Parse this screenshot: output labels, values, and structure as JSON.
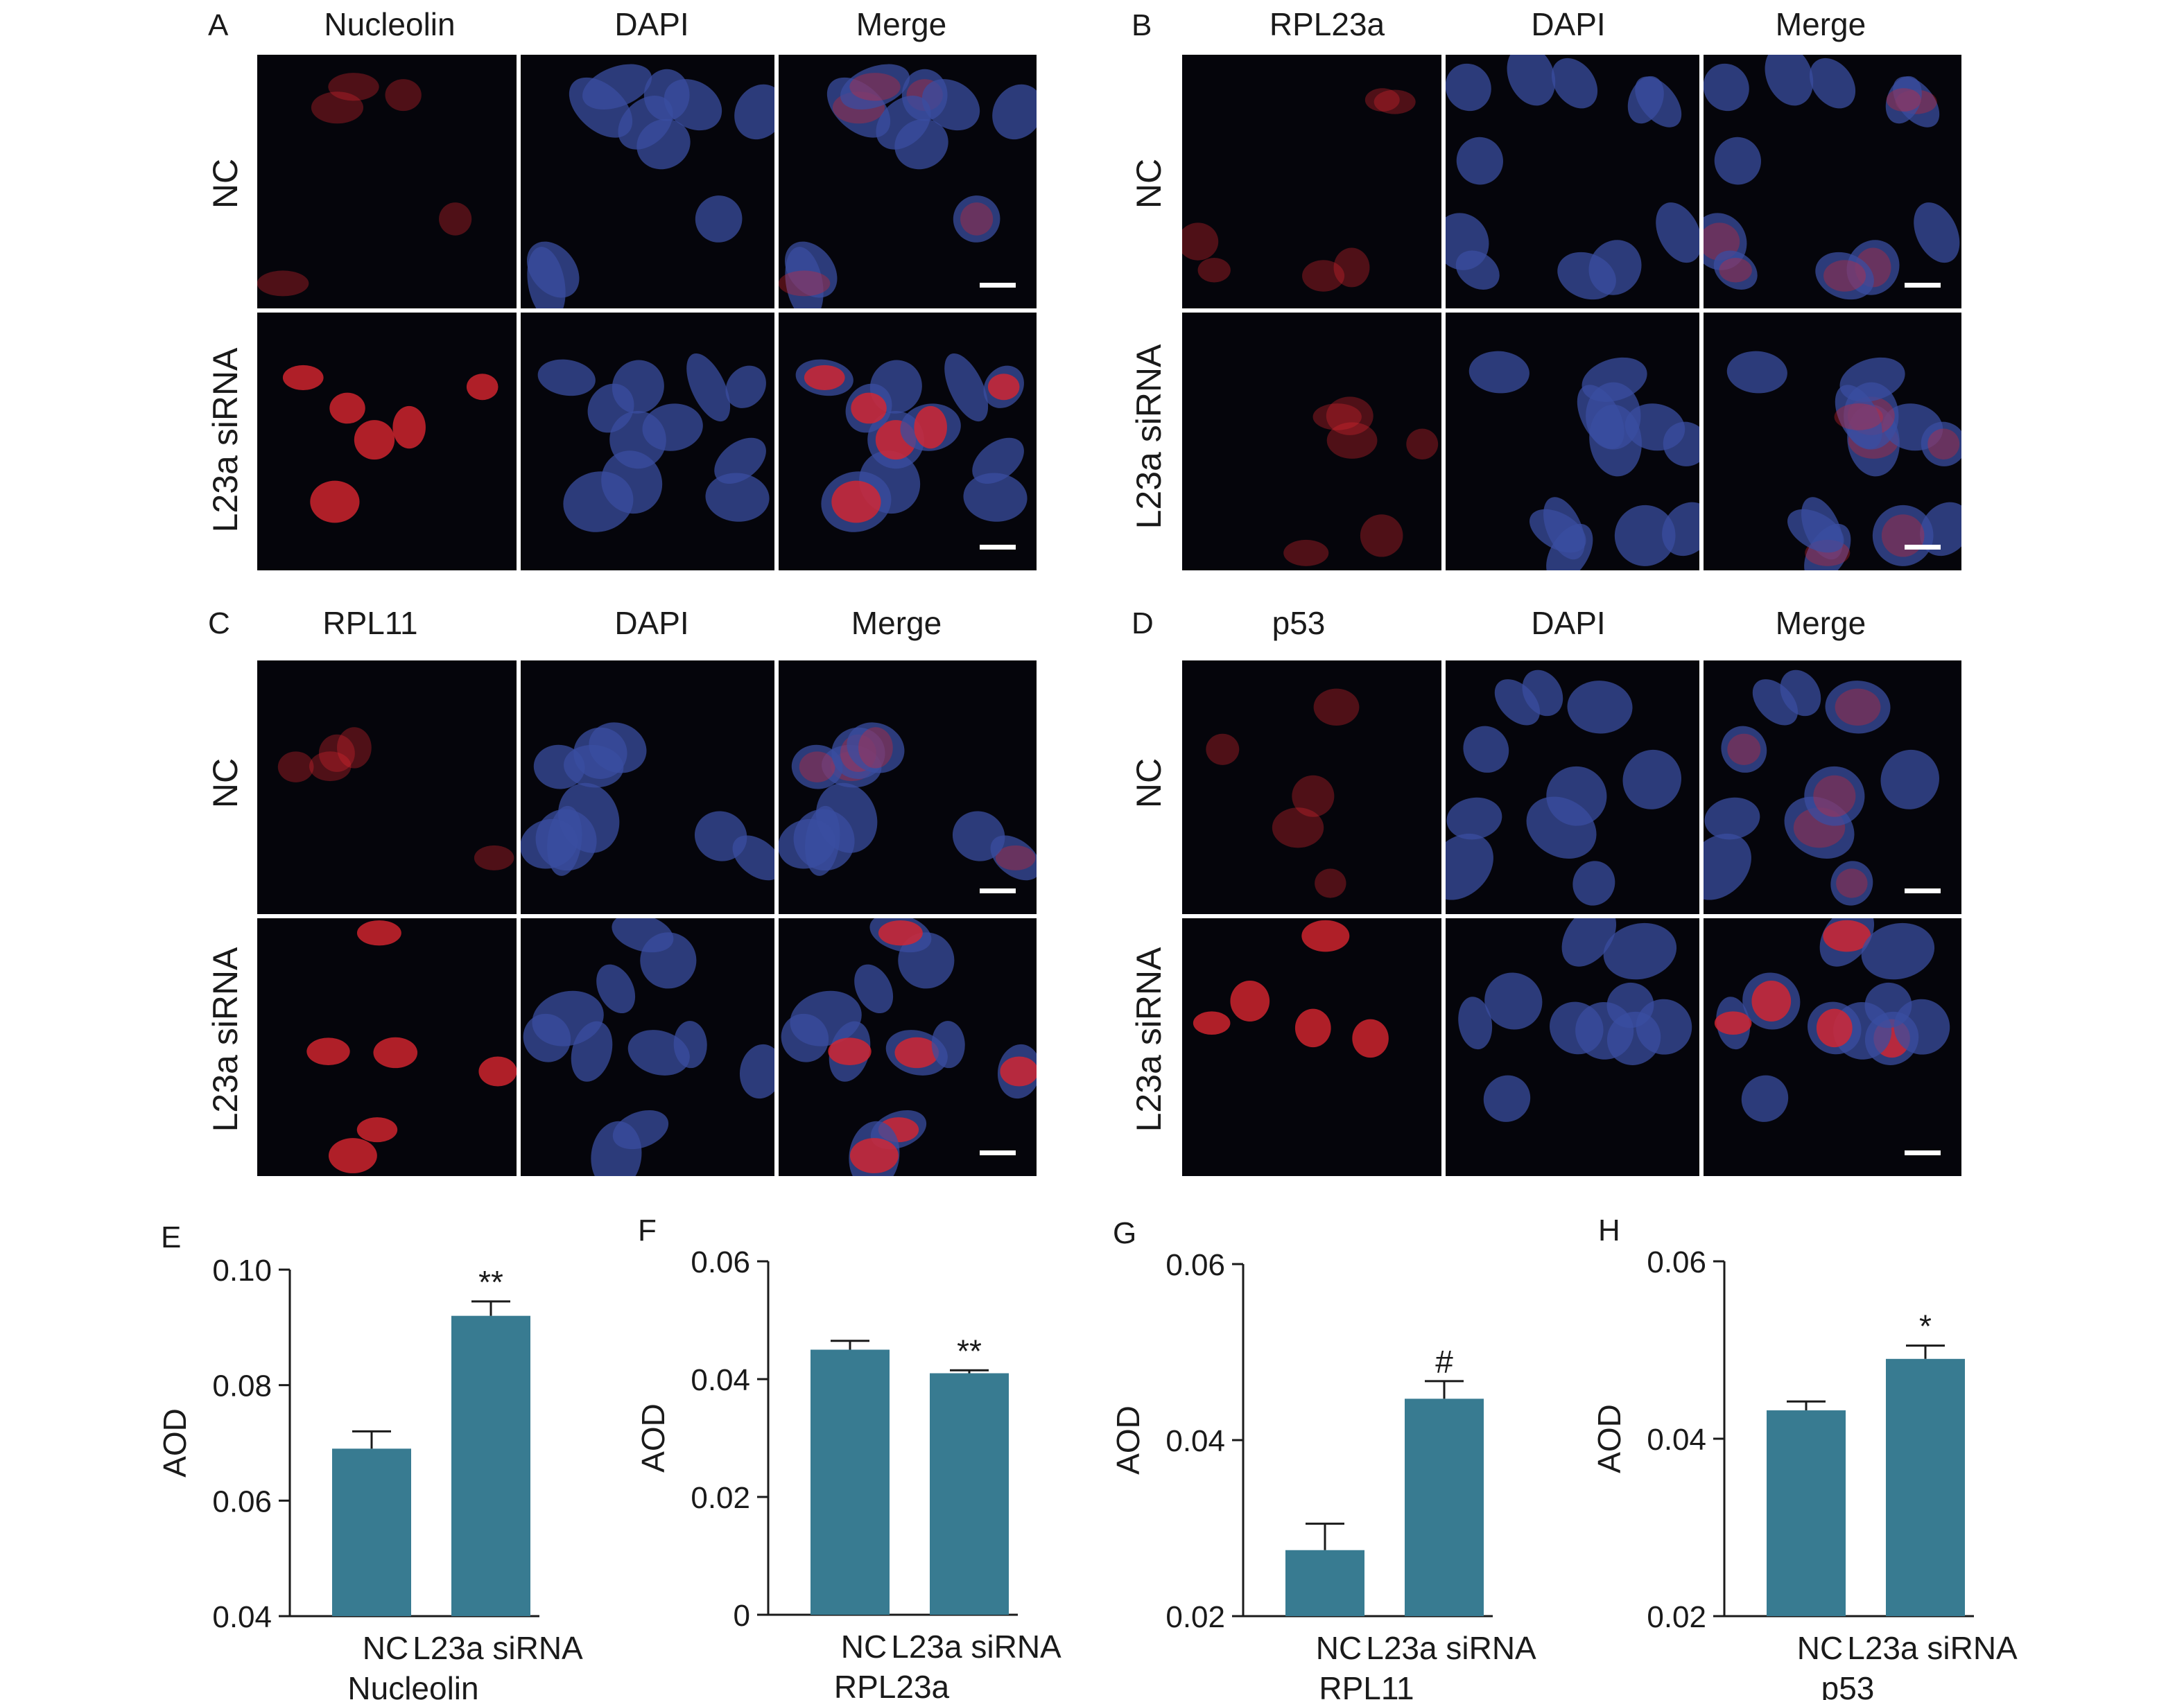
{
  "colors": {
    "bar": "#387b91",
    "axis": "#1a1a1a",
    "micro_background": "#05050b",
    "red_stain": "#d9262f",
    "blue_stain": "#3a4ea0"
  },
  "figure_a": {
    "letter": "A",
    "headers": [
      "Nucleolin",
      "DAPI",
      "Merge"
    ],
    "rows": [
      "NC",
      "L23a siRNA"
    ]
  },
  "figure_b": {
    "letter": "B",
    "headers": [
      "RPL23a",
      "DAPI",
      "Merge"
    ],
    "rows": [
      "NC",
      "L23a siRNA"
    ]
  },
  "figure_c": {
    "letter": "C",
    "headers": [
      "RPL11",
      "DAPI",
      "Merge"
    ],
    "rows": [
      "NC",
      "L23a siRNA"
    ]
  },
  "figure_d": {
    "letter": "D",
    "headers": [
      "p53",
      "DAPI",
      "Merge"
    ],
    "rows": [
      "NC",
      "L23a siRNA"
    ]
  },
  "chart_data": [
    {
      "type": "bar",
      "panel": "E",
      "ylabel": "AOD",
      "xlabel": "Nucleolin",
      "categories": [
        "NC",
        "L23a siRNA"
      ],
      "values": [
        0.069,
        0.092
      ],
      "errors": [
        0.003,
        0.0025
      ],
      "annotations": [
        "",
        "**"
      ],
      "ylim": [
        0.04,
        0.1
      ],
      "yticks": [
        0.04,
        0.06,
        0.08,
        0.1
      ],
      "ytick_labels": [
        "0.04",
        "0.06",
        "0.08",
        "0.10"
      ]
    },
    {
      "type": "bar",
      "panel": "F",
      "ylabel": "AOD",
      "xlabel": "RPL23a",
      "categories": [
        "NC",
        "L23a siRNA"
      ],
      "values": [
        0.045,
        0.041
      ],
      "errors": [
        0.0015,
        0.0005
      ],
      "annotations": [
        "",
        "**"
      ],
      "ylim": [
        0,
        0.06
      ],
      "yticks": [
        0,
        0.02,
        0.04,
        0.06
      ],
      "ytick_labels": [
        "0",
        "0.02",
        "0.04",
        "0.06"
      ]
    },
    {
      "type": "bar",
      "panel": "G",
      "ylabel": "AOD",
      "xlabel": "RPL11",
      "categories": [
        "NC",
        "L23a siRNA"
      ],
      "values": [
        0.0275,
        0.0447
      ],
      "errors": [
        0.003,
        0.002
      ],
      "annotations": [
        "",
        "#"
      ],
      "ylim": [
        0.02,
        0.06
      ],
      "yticks": [
        0.02,
        0.04,
        0.06
      ],
      "ytick_labels": [
        "0.02",
        "0.04",
        "0.06"
      ]
    },
    {
      "type": "bar",
      "panel": "H",
      "ylabel": "AOD",
      "xlabel": "p53",
      "categories": [
        "NC",
        "L23a siRNA"
      ],
      "values": [
        0.0432,
        0.049
      ],
      "errors": [
        0.001,
        0.0015
      ],
      "annotations": [
        "",
        "*"
      ],
      "ylim": [
        0.02,
        0.06
      ],
      "yticks": [
        0.02,
        0.04,
        0.06
      ],
      "ytick_labels": [
        "0.02",
        "0.04",
        "0.06"
      ]
    }
  ]
}
